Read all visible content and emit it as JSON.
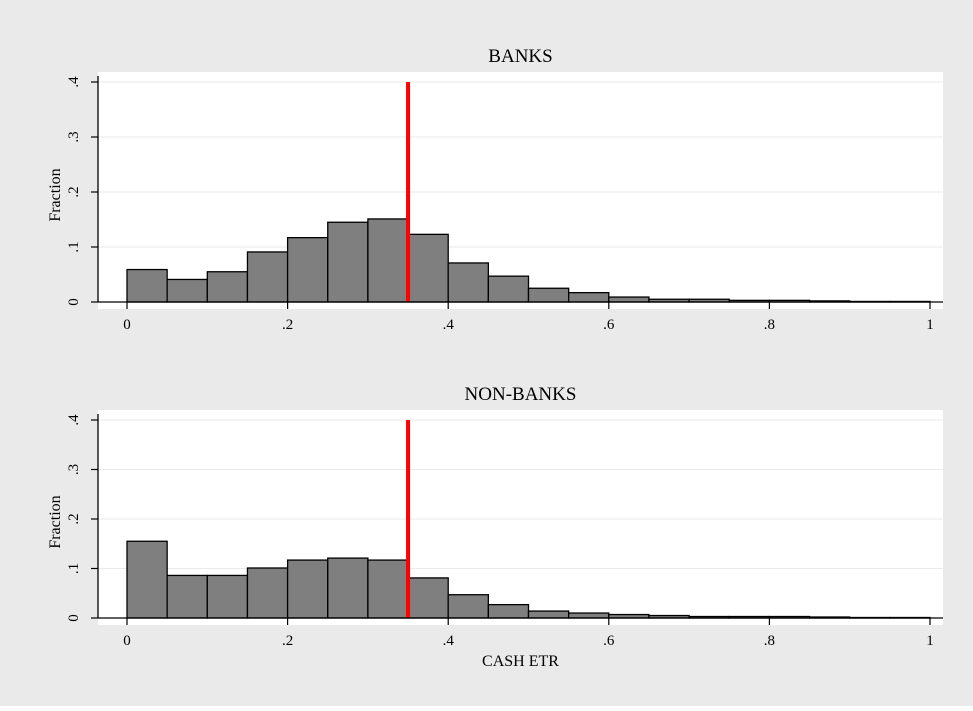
{
  "colors": {
    "outer_background": "#eaeaea",
    "plot_background": "#ffffff",
    "bar_fill": "#7f7f7f",
    "bar_stroke": "#000000",
    "reference_line": "#ff0000",
    "grid": "#eaeaea"
  },
  "chart_data": [
    {
      "type": "bar",
      "title": "BANKS",
      "xlabel": "",
      "ylabel": "Fraction",
      "xlim": [
        0,
        1
      ],
      "ylim": [
        0,
        0.4
      ],
      "grid": true,
      "x_ticks": [
        0,
        0.2,
        0.4,
        0.6,
        0.8,
        1
      ],
      "x_tick_labels": [
        "0",
        ".2",
        ".4",
        ".6",
        ".8",
        "1"
      ],
      "y_ticks": [
        0,
        0.1,
        0.2,
        0.3,
        0.4
      ],
      "y_tick_labels": [
        "0",
        ".1",
        ".2",
        ".3",
        ".4"
      ],
      "bin_width": 0.05,
      "bin_starts": [
        0,
        0.05,
        0.1,
        0.15,
        0.2,
        0.25,
        0.3,
        0.35,
        0.4,
        0.45,
        0.5,
        0.55,
        0.6,
        0.65,
        0.7,
        0.75,
        0.8,
        0.85,
        0.9,
        0.95
      ],
      "values": [
        0.059,
        0.041,
        0.055,
        0.091,
        0.117,
        0.145,
        0.151,
        0.123,
        0.071,
        0.047,
        0.025,
        0.017,
        0.009,
        0.005,
        0.005,
        0.003,
        0.003,
        0.002,
        0.001,
        0.001
      ],
      "reference_line_x": 0.35
    },
    {
      "type": "bar",
      "title": "NON-BANKS",
      "xlabel": "CASH ETR",
      "ylabel": "Fraction",
      "xlim": [
        0,
        1
      ],
      "ylim": [
        0,
        0.4
      ],
      "grid": true,
      "x_ticks": [
        0,
        0.2,
        0.4,
        0.6,
        0.8,
        1
      ],
      "x_tick_labels": [
        "0",
        ".2",
        ".4",
        ".6",
        ".8",
        "1"
      ],
      "y_ticks": [
        0,
        0.1,
        0.2,
        0.3,
        0.4
      ],
      "y_tick_labels": [
        "0",
        ".1",
        ".2",
        ".3",
        ".4"
      ],
      "bin_width": 0.05,
      "bin_starts": [
        0,
        0.05,
        0.1,
        0.15,
        0.2,
        0.25,
        0.3,
        0.35,
        0.4,
        0.45,
        0.5,
        0.55,
        0.6,
        0.65,
        0.7,
        0.75,
        0.8,
        0.85,
        0.9,
        0.95
      ],
      "values": [
        0.155,
        0.086,
        0.086,
        0.101,
        0.117,
        0.121,
        0.117,
        0.081,
        0.047,
        0.027,
        0.014,
        0.01,
        0.007,
        0.005,
        0.003,
        0.003,
        0.003,
        0.002,
        0.001,
        0.001
      ],
      "reference_line_x": 0.35
    }
  ]
}
